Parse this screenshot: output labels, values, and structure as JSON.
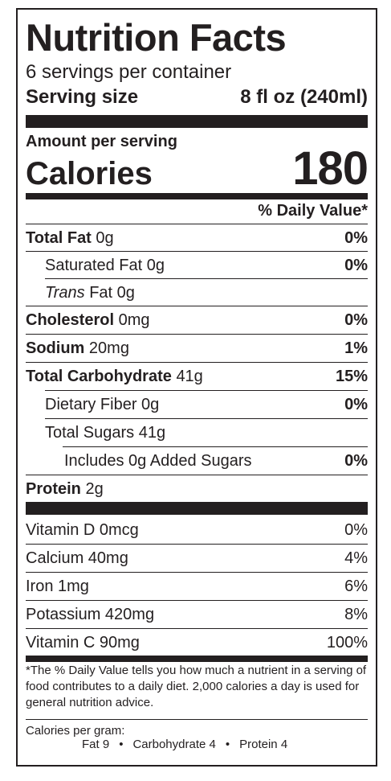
{
  "title": "Nutrition Facts",
  "servings_per_container": "6 servings per container",
  "serving_size": {
    "label": "Serving size",
    "value": "8 fl oz (240ml)"
  },
  "amount_per_serving": "Amount per serving",
  "calories": {
    "label": "Calories",
    "value": "180"
  },
  "daily_value_header": "% Daily Value*",
  "nutrients": [
    {
      "name": "Total Fat",
      "amount": "0g",
      "dv": "0%"
    },
    {
      "name": "Saturated Fat",
      "amount": "0g",
      "dv": "0%"
    },
    {
      "name": "Trans",
      "name_rest": "Fat",
      "amount": "0g",
      "dv": ""
    },
    {
      "name": "Cholesterol",
      "amount": "0mg",
      "dv": "0%"
    },
    {
      "name": "Sodium",
      "amount": "20mg",
      "dv": "1%"
    },
    {
      "name": "Total Carbohydrate",
      "amount": "41g",
      "dv": "15%"
    },
    {
      "name": "Dietary Fiber",
      "amount": "0g",
      "dv": "0%"
    },
    {
      "name": "Total Sugars",
      "amount": "41g",
      "dv": ""
    },
    {
      "name": "Includes 0g Added Sugars",
      "amount": "",
      "dv": "0%"
    },
    {
      "name": "Protein",
      "amount": "2g",
      "dv": ""
    }
  ],
  "vitamins": [
    {
      "name": "Vitamin D 0mcg",
      "dv": "0%"
    },
    {
      "name": "Calcium 40mg",
      "dv": "4%"
    },
    {
      "name": "Iron 1mg",
      "dv": "6%"
    },
    {
      "name": "Potassium 420mg",
      "dv": "8%"
    },
    {
      "name": "Vitamin C 90mg",
      "dv": "100%"
    }
  ],
  "footnote": "*The % Daily Value tells you how much a nutrient in a serving of food contributes to a daily diet. 2,000 calories a day is used for general nutrition advice.",
  "calories_per_gram": {
    "label": "Calories per gram:",
    "fat": "Fat 9",
    "carbohydrate": "Carbohydrate 4",
    "protein": "Protein 4",
    "separator": "•"
  }
}
